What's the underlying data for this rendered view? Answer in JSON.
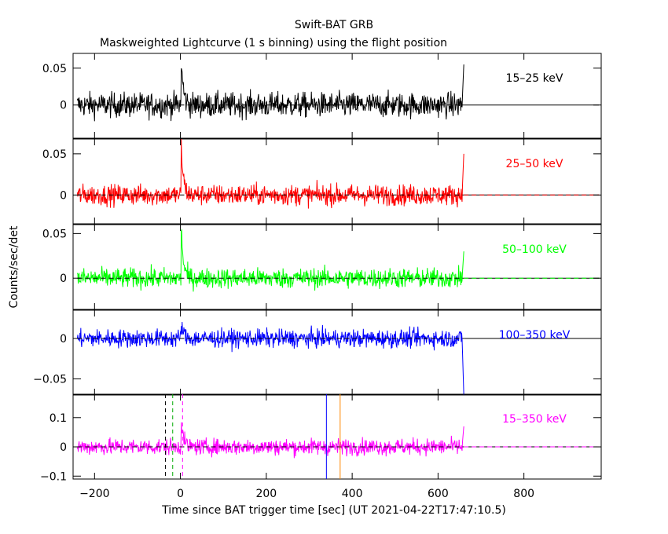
{
  "chart_data": {
    "type": "line",
    "title": "Swift-BAT GRB",
    "subtitle": "Maskweighted Lightcurve (1 s binning) using the flight position",
    "xlabel": "Time since BAT trigger time [sec] (UT 2021-04-22T17:47:10.5)",
    "ylabel": "Counts/sec/det",
    "xlim": [
      -250,
      980
    ],
    "x_ticks": [
      -200,
      0,
      200,
      400,
      600,
      800
    ],
    "x_tick_labels": [
      "−200",
      "0",
      "200",
      "400",
      "600",
      "800"
    ],
    "data_range": [
      -240,
      660
    ],
    "panels": [
      {
        "name": "15–25 keV",
        "color": "#000000",
        "ylim": [
          -0.045,
          0.07
        ],
        "yticks": [
          0,
          0.05
        ],
        "ytick_labels": [
          "0",
          "0.05"
        ],
        "noise": 0.012,
        "peak": 0.06,
        "end_spike": 0.055,
        "dashed_zero": false
      },
      {
        "name": "25–50 keV",
        "color": "#ff0000",
        "ylim": [
          -0.035,
          0.068
        ],
        "yticks": [
          0,
          0.05
        ],
        "ytick_labels": [
          "0",
          "0.05"
        ],
        "noise": 0.009,
        "peak": 0.06,
        "end_spike": 0.05,
        "dashed_zero": true
      },
      {
        "name": "50–100 keV",
        "color": "#00ff00",
        "ylim": [
          -0.035,
          0.06
        ],
        "yticks": [
          0,
          0.05
        ],
        "ytick_labels": [
          "0",
          "0.05"
        ],
        "noise": 0.008,
        "peak": 0.055,
        "end_spike": 0.03,
        "dashed_zero": true
      },
      {
        "name": "100–350 keV",
        "color": "#0000ff",
        "ylim": [
          -0.07,
          0.035
        ],
        "yticks": [
          -0.05,
          0
        ],
        "ytick_labels": [
          "−0.05",
          "0"
        ],
        "noise": 0.008,
        "peak": 0.02,
        "end_spike": -0.07,
        "dashed_zero": false
      },
      {
        "name": "15–350 keV",
        "color": "#ff00ff",
        "ylim": [
          -0.11,
          0.18
        ],
        "yticks": [
          -0.1,
          0,
          0.1
        ],
        "ytick_labels": [
          "−0.1",
          "0",
          "0.1"
        ],
        "noise": 0.02,
        "peak": 0.09,
        "end_spike": 0.07,
        "dashed_zero": true
      }
    ],
    "markers": [
      {
        "x": -35,
        "color": "#000000",
        "style": "dashed"
      },
      {
        "x": -18,
        "color": "#00aa00",
        "style": "dashed"
      },
      {
        "x": 5,
        "color": "#ff00ff",
        "style": "dashed"
      },
      {
        "x": 340,
        "color": "#0000ff",
        "style": "solid"
      },
      {
        "x": 372,
        "color": "#ff8800",
        "style": "solid"
      }
    ]
  }
}
